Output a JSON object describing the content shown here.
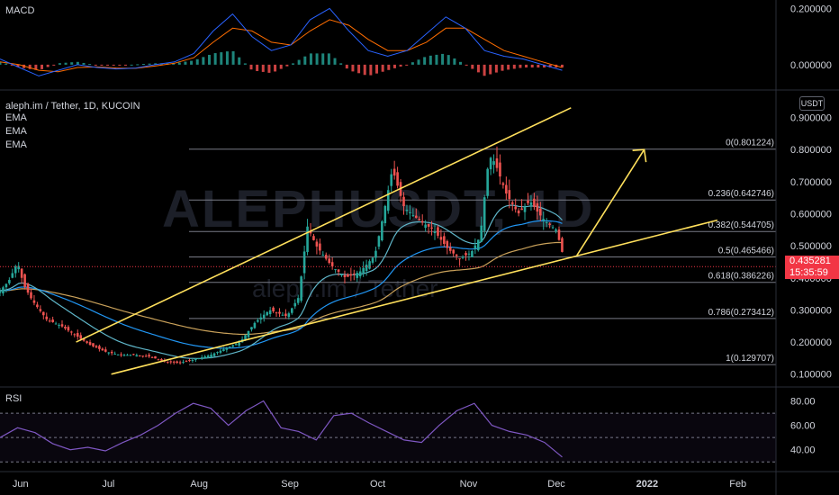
{
  "chart_data": {
    "type": "candlestick",
    "symbol": "aleph.im / Tether, 1D, KUCOIN",
    "watermark": "ALEPHUSDT, 1D",
    "watermark_sub": "aleph.im / Tether",
    "quote_currency": "USDT",
    "indicators": [
      "EMA",
      "EMA",
      "EMA"
    ],
    "x_labels": [
      "Jun",
      "Jul",
      "Aug",
      "Sep",
      "Oct",
      "Nov",
      "Dec",
      "2022",
      "Feb"
    ],
    "y_labels": [
      "0.900000",
      "0.800000",
      "0.700000",
      "0.600000",
      "0.500000",
      "0.400000",
      "0.300000",
      "0.200000",
      "0.100000"
    ],
    "ylim": [
      0.06,
      0.98
    ],
    "last_price": "0.435281",
    "countdown": "15:35:59",
    "fib_levels": [
      {
        "ratio": 0,
        "price": 0.801224,
        "label": "0(0.801224)"
      },
      {
        "ratio": 0.236,
        "price": 0.642746,
        "label": "0.236(0.642746)"
      },
      {
        "ratio": 0.382,
        "price": 0.544705,
        "label": "0.382(0.544705)"
      },
      {
        "ratio": 0.5,
        "price": 0.465466,
        "label": "0.5(0.465466)"
      },
      {
        "ratio": 0.618,
        "price": 0.386226,
        "label": "0.618(0.386226)"
      },
      {
        "ratio": 0.786,
        "price": 0.273412,
        "label": "0.786(0.273412)"
      },
      {
        "ratio": 1,
        "price": 0.129707,
        "label": "1(0.129707)"
      }
    ],
    "close_path": [
      [
        "2021-05-25",
        0.36
      ],
      [
        "2021-05-28",
        0.39
      ],
      [
        "2021-05-31",
        0.45
      ],
      [
        "2021-06-02",
        0.38
      ],
      [
        "2021-06-05",
        0.33
      ],
      [
        "2021-06-10",
        0.27
      ],
      [
        "2021-06-15",
        0.25
      ],
      [
        "2021-06-20",
        0.22
      ],
      [
        "2021-06-25",
        0.19
      ],
      [
        "2021-06-30",
        0.17
      ],
      [
        "2021-07-05",
        0.16
      ],
      [
        "2021-07-10",
        0.16
      ],
      [
        "2021-07-15",
        0.155
      ],
      [
        "2021-07-20",
        0.14
      ],
      [
        "2021-07-25",
        0.135
      ],
      [
        "2021-07-30",
        0.145
      ],
      [
        "2021-08-05",
        0.16
      ],
      [
        "2021-08-10",
        0.18
      ],
      [
        "2021-08-15",
        0.2
      ],
      [
        "2021-08-20",
        0.26
      ],
      [
        "2021-08-25",
        0.3
      ],
      [
        "2021-08-31",
        0.28
      ],
      [
        "2021-09-04",
        0.34
      ],
      [
        "2021-09-07",
        0.56
      ],
      [
        "2021-09-10",
        0.5
      ],
      [
        "2021-09-15",
        0.44
      ],
      [
        "2021-09-20",
        0.4
      ],
      [
        "2021-09-25",
        0.42
      ],
      [
        "2021-09-30",
        0.47
      ],
      [
        "2021-10-03",
        0.6
      ],
      [
        "2021-10-06",
        0.74
      ],
      [
        "2021-10-10",
        0.62
      ],
      [
        "2021-10-15",
        0.58
      ],
      [
        "2021-10-20",
        0.55
      ],
      [
        "2021-10-25",
        0.49
      ],
      [
        "2021-10-29",
        0.46
      ],
      [
        "2021-11-02",
        0.48
      ],
      [
        "2021-11-05",
        0.53
      ],
      [
        "2021-11-08",
        0.78
      ],
      [
        "2021-11-10",
        0.76
      ],
      [
        "2021-11-14",
        0.66
      ],
      [
        "2021-11-18",
        0.6
      ],
      [
        "2021-11-22",
        0.64
      ],
      [
        "2021-11-25",
        0.6
      ],
      [
        "2021-11-28",
        0.57
      ],
      [
        "2021-12-01",
        0.55
      ],
      [
        "2021-12-03",
        0.48
      ],
      [
        "2021-12-04",
        0.435
      ]
    ],
    "rsi": {
      "label": "RSI",
      "y_labels": [
        "80.00",
        "60.00",
        "40.00"
      ],
      "ylim": [
        25,
        90
      ],
      "bands": [
        70,
        50,
        30
      ],
      "values": [
        50,
        58,
        54,
        45,
        40,
        42,
        39,
        46,
        52,
        60,
        70,
        78,
        74,
        60,
        72,
        80,
        58,
        55,
        48,
        68,
        70,
        62,
        55,
        48,
        46,
        60,
        72,
        78,
        60,
        55,
        52,
        46,
        34
      ]
    },
    "macd": {
      "label": "MACD",
      "y_labels": [
        "0.200000",
        "0.000000"
      ],
      "ylim": [
        -0.09,
        0.23
      ],
      "macd_line": [
        0.02,
        -0.01,
        -0.04,
        -0.02,
        0.0,
        -0.01,
        -0.015,
        -0.012,
        0.0,
        0.01,
        0.04,
        0.12,
        0.18,
        0.1,
        0.05,
        0.07,
        0.16,
        0.2,
        0.12,
        0.05,
        0.03,
        0.05,
        0.11,
        0.17,
        0.13,
        0.05,
        0.03,
        0.02,
        0.0,
        -0.02
      ],
      "signal_line": [
        0.01,
        0.0,
        -0.02,
        -0.025,
        -0.01,
        -0.008,
        -0.012,
        -0.013,
        -0.005,
        0.005,
        0.025,
        0.08,
        0.13,
        0.12,
        0.08,
        0.07,
        0.12,
        0.16,
        0.14,
        0.09,
        0.05,
        0.05,
        0.08,
        0.13,
        0.13,
        0.09,
        0.05,
        0.03,
        0.01,
        -0.01
      ]
    },
    "drawings": {
      "channel_upper": [
        [
          "2021-06-20",
          0.2
        ],
        [
          "2021-12-06",
          0.93
        ]
      ],
      "channel_lower": [
        [
          "2021-07-02",
          0.1
        ],
        [
          "2022-01-25",
          0.58
        ]
      ],
      "arrow": [
        [
          "2021-12-08",
          0.47
        ],
        [
          "2021-12-31",
          0.8
        ]
      ]
    },
    "colors": {
      "up": "#26a69a",
      "down": "#ef5350",
      "ema_fast": "#2962ff",
      "ema_slow": "#f9b642",
      "trend": "#ffe05c",
      "rsi": "#7e57c2",
      "fib": "#787b86",
      "price": "#f23645"
    }
  }
}
